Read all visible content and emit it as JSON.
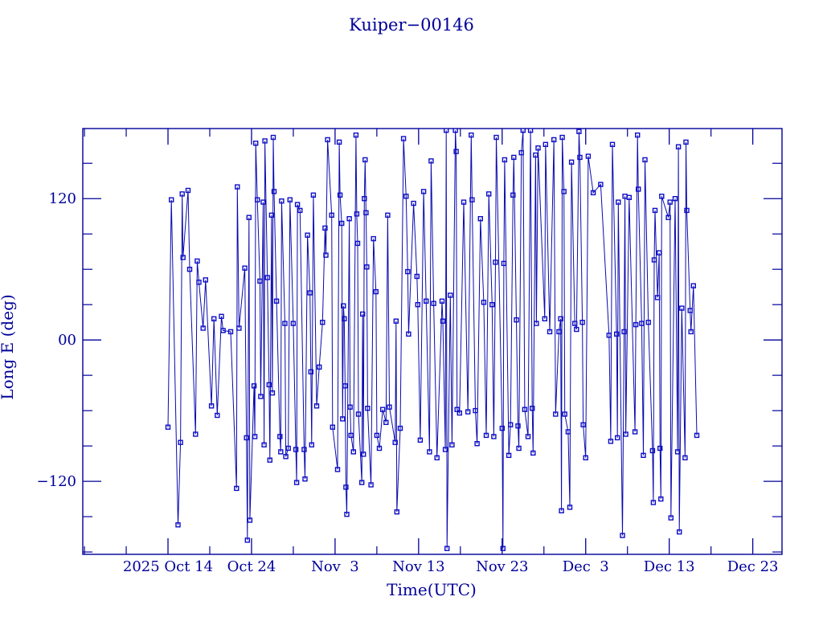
{
  "title": "Kuiper−00146",
  "colors": {
    "background": "#ffffff",
    "ink": "#000099",
    "data_line": "#0a0aae",
    "marker": "#0d0dc8"
  },
  "chart_data": {
    "type": "line",
    "title": "Kuiper−00146",
    "xlabel": "Time(UTC)",
    "ylabel": "Long E (deg)",
    "x_unit": "days since 2025-10-14 00:00 UTC",
    "x_domain": [
      -10.2,
      73.5
    ],
    "y_domain": [
      -182,
      179.5
    ],
    "grid": false,
    "legend": "none",
    "marker": "open-square",
    "x_major_ticks": [
      {
        "t": 0,
        "label": "2025 Oct 14"
      },
      {
        "t": 10,
        "label": "Oct 24"
      },
      {
        "t": 20,
        "label": "Nov  3"
      },
      {
        "t": 30,
        "label": "Nov 13"
      },
      {
        "t": 40,
        "label": "Nov 23"
      },
      {
        "t": 50,
        "label": "Dec  3"
      },
      {
        "t": 60,
        "label": "Dec 13"
      },
      {
        "t": 70,
        "label": "Dec 23"
      }
    ],
    "x_minor_ticks_days": [
      -10,
      -5,
      5,
      15,
      25,
      35,
      45,
      55,
      65
    ],
    "y_major_ticks": [
      {
        "value": 120,
        "label": "120"
      },
      {
        "value": 0,
        "label": "00"
      },
      {
        "value": -120,
        "label": "−120"
      }
    ],
    "y_minor_ticks_deg": [
      -180,
      -150,
      -90,
      -60,
      -30,
      30,
      60,
      90,
      150,
      180
    ],
    "series": [
      {
        "name": "Long E (deg)",
        "points": [
          [
            0.0,
            -74
          ],
          [
            0.4,
            119
          ],
          [
            1.2,
            -157
          ],
          [
            1.5,
            -87
          ],
          [
            1.7,
            124
          ],
          [
            1.8,
            70
          ],
          [
            2.4,
            127
          ],
          [
            2.6,
            60
          ],
          [
            3.3,
            -80
          ],
          [
            3.5,
            67
          ],
          [
            3.7,
            49
          ],
          [
            4.2,
            10
          ],
          [
            4.5,
            51
          ],
          [
            5.2,
            -56
          ],
          [
            5.5,
            18
          ],
          [
            5.9,
            -64
          ],
          [
            6.4,
            20
          ],
          [
            6.6,
            8
          ],
          [
            7.5,
            7
          ],
          [
            8.2,
            -126
          ],
          [
            8.3,
            130
          ],
          [
            8.5,
            10
          ],
          [
            9.2,
            61
          ],
          [
            9.4,
            -83
          ],
          [
            9.5,
            -170
          ],
          [
            9.7,
            104
          ],
          [
            9.8,
            -153
          ],
          [
            10.3,
            -39
          ],
          [
            10.4,
            -82
          ],
          [
            10.5,
            167
          ],
          [
            10.7,
            119
          ],
          [
            11.0,
            50
          ],
          [
            11.1,
            -48
          ],
          [
            11.4,
            117
          ],
          [
            11.5,
            -89
          ],
          [
            11.6,
            169
          ],
          [
            11.9,
            53
          ],
          [
            12.1,
            -38
          ],
          [
            12.2,
            -102
          ],
          [
            12.4,
            106
          ],
          [
            12.5,
            -45
          ],
          [
            12.6,
            172
          ],
          [
            12.7,
            126
          ],
          [
            13.0,
            33
          ],
          [
            13.4,
            -82
          ],
          [
            13.5,
            -95
          ],
          [
            13.6,
            118
          ],
          [
            14.0,
            14
          ],
          [
            14.1,
            -99
          ],
          [
            14.4,
            -92
          ],
          [
            14.6,
            119
          ],
          [
            15.0,
            14
          ],
          [
            15.3,
            -93
          ],
          [
            15.4,
            -121
          ],
          [
            15.5,
            115
          ],
          [
            15.8,
            110
          ],
          [
            16.3,
            -93
          ],
          [
            16.4,
            -118
          ],
          [
            16.7,
            89
          ],
          [
            17.0,
            40
          ],
          [
            17.1,
            -27
          ],
          [
            17.2,
            -89
          ],
          [
            17.4,
            123
          ],
          [
            17.8,
            -56
          ],
          [
            18.1,
            -23
          ],
          [
            18.5,
            15
          ],
          [
            18.8,
            95
          ],
          [
            18.9,
            72
          ],
          [
            19.1,
            170
          ],
          [
            19.6,
            106
          ],
          [
            19.7,
            -74
          ],
          [
            20.3,
            -110
          ],
          [
            20.5,
            168
          ],
          [
            20.6,
            123
          ],
          [
            20.8,
            99
          ],
          [
            20.9,
            -67
          ],
          [
            21.0,
            29
          ],
          [
            21.1,
            18
          ],
          [
            21.2,
            -39
          ],
          [
            21.3,
            -125
          ],
          [
            21.4,
            -148
          ],
          [
            21.7,
            103
          ],
          [
            21.8,
            -57
          ],
          [
            21.9,
            -81
          ],
          [
            22.2,
            -95
          ],
          [
            22.5,
            174
          ],
          [
            22.6,
            107
          ],
          [
            22.7,
            82
          ],
          [
            22.8,
            -63
          ],
          [
            23.2,
            -121
          ],
          [
            23.3,
            22
          ],
          [
            23.4,
            -97
          ],
          [
            23.5,
            120
          ],
          [
            23.6,
            153
          ],
          [
            23.7,
            108
          ],
          [
            23.8,
            62
          ],
          [
            23.9,
            -58
          ],
          [
            24.3,
            -123
          ],
          [
            24.6,
            86
          ],
          [
            24.9,
            41
          ],
          [
            25.0,
            -81
          ],
          [
            25.3,
            -92
          ],
          [
            25.7,
            -59
          ],
          [
            26.1,
            -70
          ],
          [
            26.3,
            106
          ],
          [
            26.5,
            -57
          ],
          [
            27.2,
            -87
          ],
          [
            27.3,
            16
          ],
          [
            27.4,
            -146
          ],
          [
            27.8,
            -75
          ],
          [
            28.2,
            171
          ],
          [
            28.5,
            122
          ],
          [
            28.7,
            58
          ],
          [
            28.8,
            5
          ],
          [
            29.4,
            116
          ],
          [
            29.8,
            54
          ],
          [
            29.9,
            30
          ],
          [
            30.2,
            -85
          ],
          [
            30.6,
            126
          ],
          [
            30.9,
            33
          ],
          [
            31.3,
            -95
          ],
          [
            31.5,
            152
          ],
          [
            31.8,
            31
          ],
          [
            32.2,
            -100
          ],
          [
            32.8,
            33
          ],
          [
            32.9,
            16
          ],
          [
            33.2,
            -93
          ],
          [
            33.3,
            178
          ],
          [
            33.4,
            -177
          ],
          [
            33.8,
            38
          ],
          [
            34.0,
            -89
          ],
          [
            34.4,
            178
          ],
          [
            34.5,
            160
          ],
          [
            34.6,
            -59
          ],
          [
            34.9,
            -62
          ],
          [
            35.4,
            117
          ],
          [
            35.9,
            -61
          ],
          [
            36.3,
            174
          ],
          [
            36.4,
            119
          ],
          [
            36.8,
            -60
          ],
          [
            37.0,
            -88
          ],
          [
            37.4,
            103
          ],
          [
            37.8,
            32
          ],
          [
            38.1,
            -81
          ],
          [
            38.4,
            124
          ],
          [
            38.8,
            30
          ],
          [
            39.0,
            -82
          ],
          [
            39.2,
            66
          ],
          [
            39.3,
            172
          ],
          [
            40.0,
            -75
          ],
          [
            40.1,
            -177
          ],
          [
            40.2,
            65
          ],
          [
            40.3,
            153
          ],
          [
            40.8,
            -98
          ],
          [
            41.0,
            -72
          ],
          [
            41.3,
            123
          ],
          [
            41.4,
            155
          ],
          [
            41.7,
            17
          ],
          [
            41.9,
            -73
          ],
          [
            42.0,
            -92
          ],
          [
            42.3,
            159
          ],
          [
            42.5,
            178
          ],
          [
            42.7,
            -59
          ],
          [
            43.1,
            -82
          ],
          [
            43.4,
            178
          ],
          [
            43.6,
            -58
          ],
          [
            43.7,
            -96
          ],
          [
            44.0,
            157
          ],
          [
            44.1,
            14
          ],
          [
            44.3,
            163
          ],
          [
            45.1,
            18
          ],
          [
            45.2,
            166
          ],
          [
            45.7,
            7
          ],
          [
            46.2,
            170
          ],
          [
            46.4,
            -63
          ],
          [
            46.8,
            7
          ],
          [
            47.0,
            18
          ],
          [
            47.1,
            -145
          ],
          [
            47.2,
            172
          ],
          [
            47.4,
            126
          ],
          [
            47.5,
            -63
          ],
          [
            47.9,
            -78
          ],
          [
            48.1,
            -142
          ],
          [
            48.3,
            151
          ],
          [
            48.7,
            14
          ],
          [
            48.9,
            9
          ],
          [
            49.2,
            177
          ],
          [
            49.3,
            155
          ],
          [
            49.6,
            15
          ],
          [
            49.7,
            -72
          ],
          [
            50.0,
            -100
          ],
          [
            50.3,
            156
          ],
          [
            50.9,
            125
          ],
          [
            51.8,
            132
          ],
          [
            52.8,
            4
          ],
          [
            53.0,
            -86
          ],
          [
            53.2,
            166
          ],
          [
            53.7,
            5
          ],
          [
            53.8,
            -83
          ],
          [
            53.9,
            117
          ],
          [
            54.4,
            -166
          ],
          [
            54.6,
            7
          ],
          [
            54.7,
            122
          ],
          [
            54.8,
            -80
          ],
          [
            55.2,
            121
          ],
          [
            55.9,
            -78
          ],
          [
            56.0,
            13
          ],
          [
            56.2,
            174
          ],
          [
            56.3,
            128
          ],
          [
            56.7,
            14
          ],
          [
            56.9,
            -98
          ],
          [
            57.1,
            153
          ],
          [
            57.5,
            15
          ],
          [
            58.0,
            -94
          ],
          [
            58.1,
            -138
          ],
          [
            58.2,
            68
          ],
          [
            58.3,
            110
          ],
          [
            58.6,
            36
          ],
          [
            58.8,
            74
          ],
          [
            58.9,
            -92
          ],
          [
            59.0,
            -135
          ],
          [
            59.1,
            122
          ],
          [
            59.9,
            104
          ],
          [
            60.1,
            117
          ],
          [
            60.2,
            -151
          ],
          [
            60.7,
            120
          ],
          [
            61.0,
            -95
          ],
          [
            61.1,
            164
          ],
          [
            61.2,
            -163
          ],
          [
            61.5,
            27
          ],
          [
            61.9,
            -100
          ],
          [
            62.0,
            168
          ],
          [
            62.1,
            110
          ],
          [
            62.5,
            25
          ],
          [
            62.6,
            7
          ],
          [
            62.9,
            46
          ],
          [
            63.3,
            -81
          ]
        ]
      }
    ]
  }
}
